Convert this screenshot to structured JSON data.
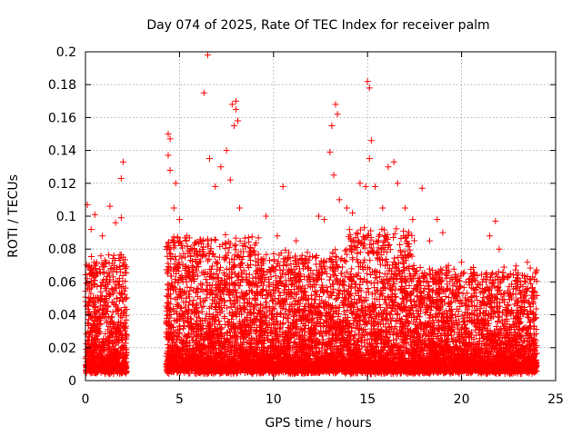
{
  "chart_data": {
    "type": "scatter",
    "title": "Day 074 of 2025, Rate Of TEC Index for receiver palm",
    "xlabel": "GPS time / hours",
    "ylabel": "ROTI / TECUs",
    "xlim": [
      0,
      25
    ],
    "ylim": [
      0,
      0.2
    ],
    "xticks": [
      0,
      5,
      10,
      15,
      20,
      25
    ],
    "xtick_labels": [
      "0",
      "5",
      "10",
      "15",
      "20",
      "25"
    ],
    "yticks": [
      0,
      0.02,
      0.04,
      0.06,
      0.08,
      0.1,
      0.12,
      0.14,
      0.16,
      0.18,
      0.2
    ],
    "ytick_labels": [
      "0",
      "0.02",
      "0.04",
      "0.06",
      "0.08",
      "0.1",
      "0.12",
      "0.14",
      "0.16",
      "0.18",
      "0.2"
    ],
    "grid": true,
    "marker": "+",
    "color": "#ff0000",
    "series": [
      {
        "name": "ROTI",
        "points": [
          [
            0.1,
            0.107
          ],
          [
            0.3,
            0.092
          ],
          [
            0.5,
            0.101
          ],
          [
            0.9,
            0.088
          ],
          [
            1.3,
            0.106
          ],
          [
            1.6,
            0.096
          ],
          [
            1.9,
            0.123
          ],
          [
            2.0,
            0.133
          ],
          [
            1.9,
            0.099
          ],
          [
            0.2,
            0.07
          ],
          [
            0.6,
            0.065
          ],
          [
            1.1,
            0.072
          ],
          [
            1.5,
            0.06
          ],
          [
            2.0,
            0.075
          ],
          [
            4.4,
            0.15
          ],
          [
            4.5,
            0.147
          ],
          [
            4.4,
            0.137
          ],
          [
            4.5,
            0.128
          ],
          [
            4.7,
            0.105
          ],
          [
            4.8,
            0.12
          ],
          [
            5.0,
            0.098
          ],
          [
            5.4,
            0.088
          ],
          [
            6.3,
            0.175
          ],
          [
            6.5,
            0.198
          ],
          [
            6.6,
            0.135
          ],
          [
            6.9,
            0.118
          ],
          [
            7.2,
            0.13
          ],
          [
            7.5,
            0.14
          ],
          [
            7.8,
            0.168
          ],
          [
            8.0,
            0.165
          ],
          [
            7.9,
            0.155
          ],
          [
            8.0,
            0.17
          ],
          [
            8.1,
            0.158
          ],
          [
            7.7,
            0.122
          ],
          [
            8.2,
            0.105
          ],
          [
            9.6,
            0.1
          ],
          [
            10.2,
            0.088
          ],
          [
            10.5,
            0.118
          ],
          [
            11.2,
            0.085
          ],
          [
            11.8,
            0.078
          ],
          [
            12.4,
            0.1
          ],
          [
            12.7,
            0.098
          ],
          [
            13.0,
            0.139
          ],
          [
            13.2,
            0.125
          ],
          [
            13.3,
            0.168
          ],
          [
            13.4,
            0.162
          ],
          [
            13.1,
            0.155
          ],
          [
            13.5,
            0.11
          ],
          [
            13.9,
            0.105
          ],
          [
            14.2,
            0.102
          ],
          [
            14.6,
            0.12
          ],
          [
            14.9,
            0.118
          ],
          [
            15.0,
            0.182
          ],
          [
            15.1,
            0.178
          ],
          [
            15.2,
            0.146
          ],
          [
            15.1,
            0.135
          ],
          [
            15.4,
            0.118
          ],
          [
            15.8,
            0.105
          ],
          [
            16.1,
            0.13
          ],
          [
            16.4,
            0.133
          ],
          [
            16.6,
            0.12
          ],
          [
            17.0,
            0.105
          ],
          [
            17.4,
            0.098
          ],
          [
            17.9,
            0.117
          ],
          [
            18.3,
            0.085
          ],
          [
            18.7,
            0.098
          ],
          [
            19.0,
            0.09
          ],
          [
            19.3,
            0.07
          ],
          [
            20.0,
            0.072
          ],
          [
            20.5,
            0.065
          ],
          [
            21.1,
            0.06
          ],
          [
            21.5,
            0.088
          ],
          [
            21.8,
            0.097
          ],
          [
            22.0,
            0.08
          ],
          [
            22.6,
            0.065
          ],
          [
            23.0,
            0.06
          ],
          [
            23.5,
            0.072
          ],
          [
            23.9,
            0.038
          ]
        ]
      }
    ],
    "density_segments": [
      {
        "x_range": [
          0.0,
          2.2
        ],
        "peak": 0.07
      },
      {
        "x_range": [
          4.3,
          9.2
        ],
        "peak": 0.08
      },
      {
        "x_range": [
          9.2,
          14.0
        ],
        "peak": 0.07
      },
      {
        "x_range": [
          14.0,
          17.5
        ],
        "peak": 0.085
      },
      {
        "x_range": [
          17.5,
          24.0
        ],
        "peak": 0.06
      }
    ]
  }
}
